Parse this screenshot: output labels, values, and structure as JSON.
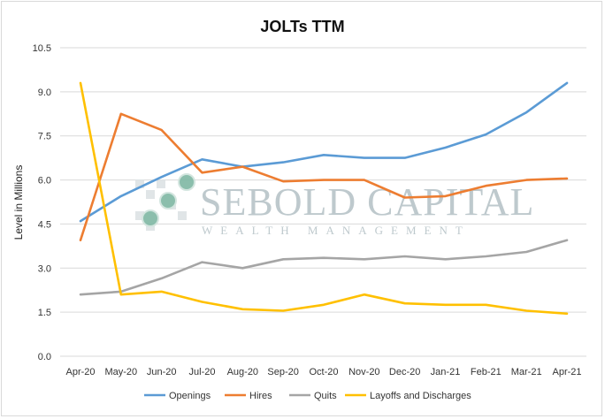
{
  "chart_data": {
    "type": "line",
    "title": "JOLTs TTM",
    "xlabel": "",
    "ylabel": "Level in Millions",
    "ylim": [
      0,
      10.5
    ],
    "yticks": [
      "0.0",
      "1.5",
      "3.0",
      "4.5",
      "6.0",
      "7.5",
      "9.0",
      "10.5"
    ],
    "categories": [
      "Apr-20",
      "May-20",
      "Jun-20",
      "Jul-20",
      "Aug-20",
      "Sep-20",
      "Oct-20",
      "Nov-20",
      "Dec-20",
      "Jan-21",
      "Feb-21",
      "Mar-21",
      "Apr-21"
    ],
    "grid": true,
    "legend_position": "bottom",
    "series": [
      {
        "name": "Openings",
        "color": "#5b9bd5",
        "values": [
          4.6,
          5.45,
          6.1,
          6.7,
          6.45,
          6.6,
          6.85,
          6.75,
          6.75,
          7.1,
          7.55,
          8.3,
          9.3
        ]
      },
      {
        "name": "Hires",
        "color": "#ed7d31",
        "values": [
          3.95,
          8.25,
          7.7,
          6.25,
          6.45,
          5.95,
          6.0,
          6.0,
          5.4,
          5.45,
          5.8,
          6.0,
          6.05
        ]
      },
      {
        "name": "Quits",
        "color": "#a5a5a5",
        "values": [
          2.1,
          2.2,
          2.65,
          3.2,
          3.0,
          3.3,
          3.35,
          3.3,
          3.4,
          3.3,
          3.4,
          3.55,
          3.95
        ]
      },
      {
        "name": "Layoffs and Discharges",
        "color": "#ffc000",
        "values": [
          9.3,
          2.1,
          2.2,
          1.85,
          1.6,
          1.55,
          1.75,
          2.1,
          1.8,
          1.75,
          1.75,
          1.55,
          1.45
        ]
      }
    ]
  },
  "watermark": {
    "name": "Sebold Capital",
    "tagline": "Wealth Management"
  }
}
